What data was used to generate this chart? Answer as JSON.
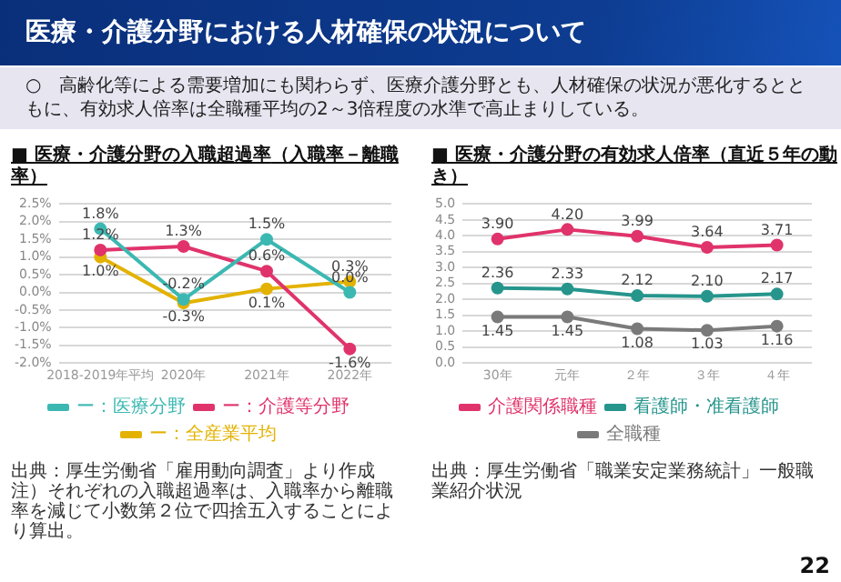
{
  "chart_data": [
    {
      "type": "other",
      "title": "医療・介護分野における人材確保の状況について",
      "annotations": [
        "○　高齢化等による需要増加にも関わらず、医療介護分野とも、人材確保の状況が悪化するとともに、有効求人倍率は全職種平均の2～3倍程度の水準で高止まりしている。",
        "22"
      ]
    },
    {
      "type": "line",
      "title": "■ 医療・介護分野の入職超過率",
      "subtitle": "（入職率－離職率）",
      "categories": [
        "2018-2019年平均",
        "2020年",
        "2021年",
        "2022年"
      ],
      "series": [
        {
          "name": "ー：医療分野",
          "color": "#3cb8b2",
          "values": [
            1.8,
            -0.2,
            1.5,
            0.0
          ],
          "value_labels": [
            "1.8%",
            "-0.2%",
            "1.5%",
            "0.0%"
          ]
        },
        {
          "name": "ー：介護等分野",
          "color": "#e0336b",
          "values": [
            1.2,
            1.3,
            0.6,
            -1.6
          ],
          "value_labels": [
            "1.2%",
            "1.3%",
            "0.6%",
            "-1.6%"
          ]
        },
        {
          "name": "ー：全産業平均",
          "color": "#e3b200",
          "values": [
            1.0,
            -0.3,
            0.1,
            0.3
          ],
          "value_labels": [
            "1.0%",
            "-0.3%",
            "0.1%",
            "0.3%"
          ]
        }
      ],
      "ylim": [
        -2.0,
        2.5
      ],
      "yticks": [
        {
          "value": -2.0,
          "label": "-2.0%"
        },
        {
          "value": -1.5,
          "label": "-1.5%"
        },
        {
          "value": -1.0,
          "label": "-1.0%"
        },
        {
          "value": -0.5,
          "label": "-0.5%"
        },
        {
          "value": 0,
          "label": "0.0%"
        },
        {
          "value": 0.5,
          "label": "0.5%"
        },
        {
          "value": 1.0,
          "label": "1.0%"
        },
        {
          "value": 1.5,
          "label": "1.5%"
        },
        {
          "value": 2.0,
          "label": "2.0%"
        },
        {
          "value": 2.5,
          "label": "2.5%"
        }
      ],
      "grid": "y",
      "legend": "bottom",
      "marker": "circle",
      "annotations": [
        "出典：厚生労働省「雇用動向調査」より作成",
        "注）それぞれの入職超過率は、入職率から離職率を減じて小数第２位で四捨五入することにより算出。"
      ]
    },
    {
      "type": "line",
      "title": "■ 医療・介護分野の有効求人倍率（直近５年の動き）",
      "categories": [
        "30年",
        "元年",
        "２年",
        "３年",
        "４年"
      ],
      "series": [
        {
          "name": "介護関係職種",
          "color": "#e0336b",
          "values": [
            3.9,
            4.2,
            3.99,
            3.64,
            3.71
          ],
          "value_labels": [
            "3.90",
            "4.20",
            "3.99",
            "3.64",
            "3.71"
          ]
        },
        {
          "name": "看護師・准看護師",
          "color": "#26958c",
          "values": [
            2.36,
            2.33,
            2.12,
            2.1,
            2.17
          ],
          "value_labels": [
            "2.36",
            "2.33",
            "2.12",
            "2.10",
            "2.17"
          ]
        },
        {
          "name": "全職種",
          "color": "#7a7a7a",
          "values": [
            1.45,
            1.45,
            1.08,
            1.03,
            1.16
          ],
          "value_labels": [
            "1.45",
            "1.45",
            "1.08",
            "1.03",
            "1.16"
          ]
        }
      ],
      "ylim": [
        0,
        5.0
      ],
      "yticks": [
        {
          "value": 0,
          "label": "0.0"
        },
        {
          "value": 0.5,
          "label": "0.5"
        },
        {
          "value": 1.0,
          "label": "1.0"
        },
        {
          "value": 1.5,
          "label": "1.5"
        },
        {
          "value": 2.0,
          "label": "2.0"
        },
        {
          "value": 2.5,
          "label": "2.5"
        },
        {
          "value": 3.0,
          "label": "3.0"
        },
        {
          "value": 3.5,
          "label": "3.5"
        },
        {
          "value": 4.0,
          "label": "4.0"
        },
        {
          "value": 4.5,
          "label": "4.5"
        },
        {
          "value": 5.0,
          "label": "5.0"
        }
      ],
      "grid": "y",
      "legend": "bottom",
      "marker": "circle",
      "annotations": [
        "出典：厚生労働省「職業安定業務統計」一般職業紹介状況"
      ]
    }
  ]
}
